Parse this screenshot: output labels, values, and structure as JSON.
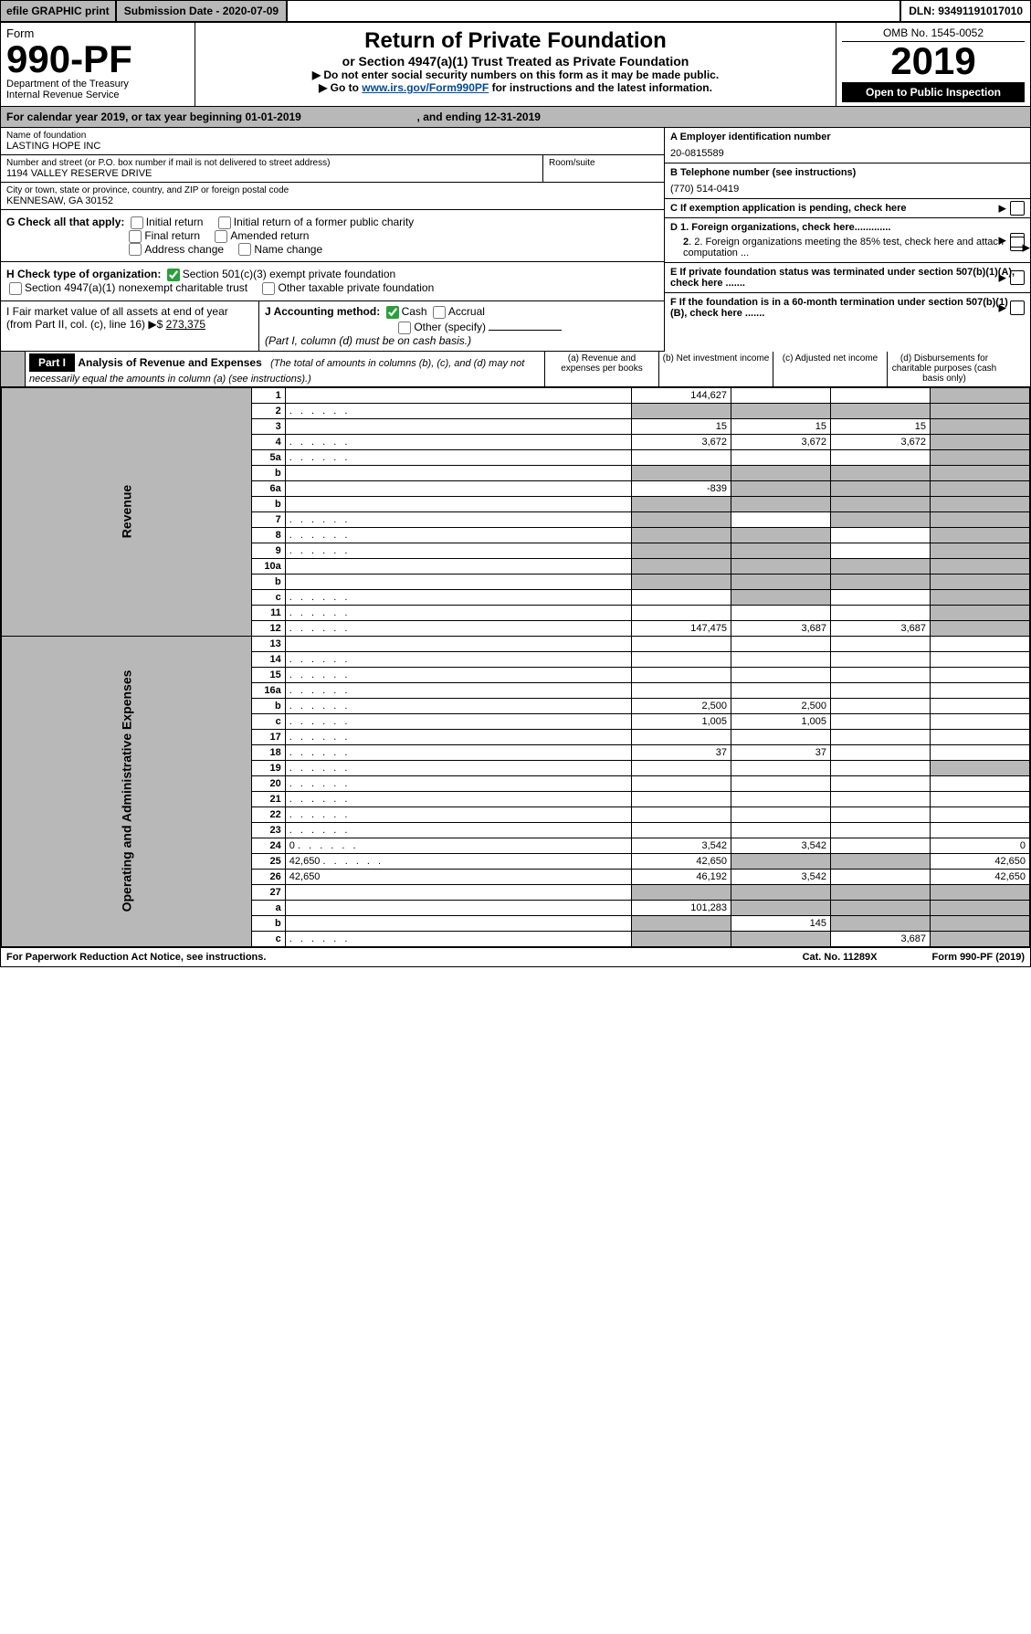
{
  "topbar": {
    "efile": "efile GRAPHIC print",
    "subdate_label": "Submission Date - 2020-07-09",
    "dln": "DLN: 93491191017010"
  },
  "header": {
    "form_label": "Form",
    "form_number": "990-PF",
    "department": "Department of the Treasury",
    "irs": "Internal Revenue Service",
    "title": "Return of Private Foundation",
    "subtitle": "or Section 4947(a)(1) Trust Treated as Private Foundation",
    "note1": "▶ Do not enter social security numbers on this form as it may be made public.",
    "note2_pre": "▶ Go to ",
    "note2_link": "www.irs.gov/Form990PF",
    "note2_post": " for instructions and the latest information.",
    "omb": "OMB No. 1545-0052",
    "year": "2019",
    "open": "Open to Public Inspection"
  },
  "calendar": {
    "text_pre": "For calendar year 2019, or tax year beginning ",
    "begin": "01-01-2019",
    "mid": " , and ending ",
    "end": "12-31-2019"
  },
  "id": {
    "name_label": "Name of foundation",
    "name": "LASTING HOPE INC",
    "addr_label": "Number and street (or P.O. box number if mail is not delivered to street address)",
    "addr": "1194 VALLEY RESERVE DRIVE",
    "room_label": "Room/suite",
    "city_label": "City or town, state or province, country, and ZIP or foreign postal code",
    "city": "KENNESAW, GA  30152",
    "A": "A Employer identification number",
    "A_val": "20-0815589",
    "B": "B Telephone number (see instructions)",
    "B_val": "(770) 514-0419",
    "C": "C If exemption application is pending, check here",
    "D1": "D 1. Foreign organizations, check here.............",
    "D2": "2. Foreign organizations meeting the 85% test, check here and attach computation ...",
    "E": "E  If private foundation status was terminated under section 507(b)(1)(A), check here .......",
    "F": "F  If the foundation is in a 60-month termination under section 507(b)(1)(B), check here .......",
    "G": "G Check all that apply:",
    "G_items": [
      "Initial return",
      "Initial return of a former public charity",
      "Final return",
      "Amended return",
      "Address change",
      "Name change"
    ],
    "H": "H Check type of organization:",
    "H_items": [
      "Section 501(c)(3) exempt private foundation",
      "Section 4947(a)(1) nonexempt charitable trust",
      "Other taxable private foundation"
    ],
    "I_pre": "I Fair market value of all assets at end of year (from Part II, col. (c), line 16) ▶$ ",
    "I_val": "273,375",
    "J": "J Accounting method:",
    "J_items": [
      "Cash",
      "Accrual",
      "Other (specify)"
    ],
    "J_note": "(Part I, column (d) must be on cash basis.)"
  },
  "partI": {
    "label": "Part I",
    "title": "Analysis of Revenue and Expenses",
    "note": "(The total of amounts in columns (b), (c), and (d) may not necessarily equal the amounts in column (a) (see instructions).)",
    "cols": {
      "a": "(a)   Revenue and expenses per books",
      "b": "(b)  Net investment income",
      "c": "(c)  Adjusted net income",
      "d": "(d)  Disbursements for charitable purposes (cash basis only)"
    }
  },
  "rows": [
    {
      "side": "rev",
      "n": "1",
      "d": "",
      "a": "144,627",
      "b": "",
      "c": "",
      "grey": [
        "d"
      ]
    },
    {
      "side": "rev",
      "n": "2",
      "d": "",
      "dots": true,
      "a": "",
      "b": "",
      "c": "",
      "grey": [
        "a",
        "b",
        "c",
        "d"
      ]
    },
    {
      "side": "rev",
      "n": "3",
      "d": "",
      "a": "15",
      "b": "15",
      "c": "15",
      "grey": [
        "d"
      ]
    },
    {
      "side": "rev",
      "n": "4",
      "d": "",
      "dots": true,
      "a": "3,672",
      "b": "3,672",
      "c": "3,672",
      "grey": [
        "d"
      ]
    },
    {
      "side": "rev",
      "n": "5a",
      "d": "",
      "dots": true,
      "a": "",
      "b": "",
      "c": "",
      "grey": [
        "d"
      ]
    },
    {
      "side": "rev",
      "n": "b",
      "d": "",
      "a": "",
      "b": "",
      "c": "",
      "grey": [
        "a",
        "b",
        "c",
        "d"
      ]
    },
    {
      "side": "rev",
      "n": "6a",
      "d": "",
      "a": "-839",
      "b": "",
      "c": "",
      "grey": [
        "b",
        "c",
        "d"
      ]
    },
    {
      "side": "rev",
      "n": "b",
      "d": "",
      "a": "",
      "b": "",
      "c": "",
      "grey": [
        "a",
        "b",
        "c",
        "d"
      ]
    },
    {
      "side": "rev",
      "n": "7",
      "d": "",
      "dots": true,
      "a": "",
      "b": "",
      "c": "",
      "grey": [
        "a",
        "c",
        "d"
      ]
    },
    {
      "side": "rev",
      "n": "8",
      "d": "",
      "dots": true,
      "a": "",
      "b": "",
      "c": "",
      "grey": [
        "a",
        "b",
        "d"
      ]
    },
    {
      "side": "rev",
      "n": "9",
      "d": "",
      "dots": true,
      "a": "",
      "b": "",
      "c": "",
      "grey": [
        "a",
        "b",
        "d"
      ]
    },
    {
      "side": "rev",
      "n": "10a",
      "d": "",
      "a": "",
      "b": "",
      "c": "",
      "grey": [
        "a",
        "b",
        "c",
        "d"
      ]
    },
    {
      "side": "rev",
      "n": "b",
      "d": "",
      "a": "",
      "b": "",
      "c": "",
      "grey": [
        "a",
        "b",
        "c",
        "d"
      ]
    },
    {
      "side": "rev",
      "n": "c",
      "d": "",
      "dots": true,
      "a": "",
      "b": "",
      "c": "",
      "grey": [
        "b",
        "d"
      ]
    },
    {
      "side": "rev",
      "n": "11",
      "d": "",
      "dots": true,
      "a": "",
      "b": "",
      "c": "",
      "grey": [
        "d"
      ]
    },
    {
      "side": "rev",
      "n": "12",
      "d": "",
      "dots": true,
      "a": "147,475",
      "b": "3,687",
      "c": "3,687",
      "grey": [
        "d"
      ]
    },
    {
      "side": "exp",
      "n": "13",
      "d": "",
      "a": "",
      "b": "",
      "c": ""
    },
    {
      "side": "exp",
      "n": "14",
      "d": "",
      "dots": true,
      "a": "",
      "b": "",
      "c": ""
    },
    {
      "side": "exp",
      "n": "15",
      "d": "",
      "dots": true,
      "a": "",
      "b": "",
      "c": ""
    },
    {
      "side": "exp",
      "n": "16a",
      "d": "",
      "dots": true,
      "a": "",
      "b": "",
      "c": ""
    },
    {
      "side": "exp",
      "n": "b",
      "d": "",
      "dots": true,
      "a": "2,500",
      "b": "2,500",
      "c": ""
    },
    {
      "side": "exp",
      "n": "c",
      "d": "",
      "dots": true,
      "a": "1,005",
      "b": "1,005",
      "c": ""
    },
    {
      "side": "exp",
      "n": "17",
      "d": "",
      "dots": true,
      "a": "",
      "b": "",
      "c": ""
    },
    {
      "side": "exp",
      "n": "18",
      "d": "",
      "dots": true,
      "a": "37",
      "b": "37",
      "c": ""
    },
    {
      "side": "exp",
      "n": "19",
      "d": "",
      "dots": true,
      "a": "",
      "b": "",
      "c": "",
      "grey": [
        "d"
      ]
    },
    {
      "side": "exp",
      "n": "20",
      "d": "",
      "dots": true,
      "a": "",
      "b": "",
      "c": ""
    },
    {
      "side": "exp",
      "n": "21",
      "d": "",
      "dots": true,
      "a": "",
      "b": "",
      "c": ""
    },
    {
      "side": "exp",
      "n": "22",
      "d": "",
      "dots": true,
      "a": "",
      "b": "",
      "c": ""
    },
    {
      "side": "exp",
      "n": "23",
      "d": "",
      "dots": true,
      "a": "",
      "b": "",
      "c": ""
    },
    {
      "side": "exp",
      "n": "24",
      "d": "0",
      "dots": true,
      "a": "3,542",
      "b": "3,542",
      "c": ""
    },
    {
      "side": "exp",
      "n": "25",
      "d": "42,650",
      "dots": true,
      "a": "42,650",
      "b": "",
      "c": "",
      "grey": [
        "b",
        "c"
      ]
    },
    {
      "side": "exp",
      "n": "26",
      "d": "42,650",
      "a": "46,192",
      "b": "3,542",
      "c": ""
    },
    {
      "side": "exp",
      "n": "27",
      "d": "",
      "a": "",
      "b": "",
      "c": "",
      "grey": [
        "a",
        "b",
        "c",
        "d"
      ]
    },
    {
      "side": "exp",
      "n": "a",
      "d": "",
      "a": "101,283",
      "b": "",
      "c": "",
      "grey": [
        "b",
        "c",
        "d"
      ]
    },
    {
      "side": "exp",
      "n": "b",
      "d": "",
      "a": "",
      "b": "145",
      "c": "",
      "grey": [
        "a",
        "c",
        "d"
      ]
    },
    {
      "side": "exp",
      "n": "c",
      "d": "",
      "dots": true,
      "a": "",
      "b": "",
      "c": "3,687",
      "grey": [
        "a",
        "b",
        "d"
      ]
    }
  ],
  "footer": {
    "left": "For Paperwork Reduction Act Notice, see instructions.",
    "cat": "Cat. No. 11289X",
    "right": "Form 990-PF (2019)"
  },
  "sidelabels": {
    "revenue": "Revenue",
    "expenses": "Operating and Administrative Expenses"
  },
  "colors": {
    "grey": "#b8b8b8",
    "link": "#004b9b",
    "check": "#29a03b"
  }
}
